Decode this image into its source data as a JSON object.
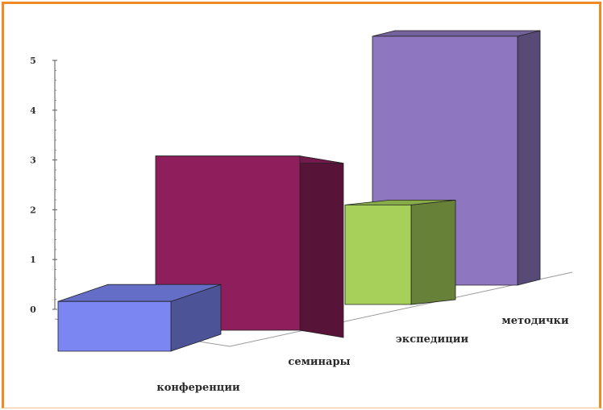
{
  "chart_data": {
    "type": "bar",
    "style": "3d-column",
    "categories": [
      "конференции",
      "семинары",
      "экспедиции",
      "методички"
    ],
    "values": [
      1,
      3.5,
      2,
      5
    ],
    "colors": {
      "конференции": "#7b86f2",
      "семинары": "#8e1f5c",
      "экспедиции": "#a6d05a",
      "методички": "#8e77c0"
    },
    "yticks": [
      "0",
      "1",
      "2",
      "3",
      "4",
      "5"
    ],
    "ylim": [
      0,
      5
    ],
    "grid": false,
    "legend": "none",
    "frame_color": "#f08a24"
  }
}
